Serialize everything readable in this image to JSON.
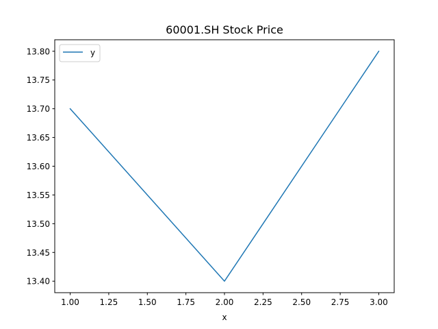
{
  "chart_data": {
    "type": "line",
    "title": "60001.SH Stock Price",
    "xlabel": "x",
    "ylabel": "",
    "x": [
      1,
      2,
      3
    ],
    "series": [
      {
        "name": "y",
        "values": [
          13.7,
          13.4,
          13.8
        ],
        "color": "#1f77b4"
      }
    ],
    "xlim": [
      0.9,
      3.1
    ],
    "ylim": [
      13.38,
      13.82
    ],
    "x_ticks": [
      1.0,
      1.25,
      1.5,
      1.75,
      2.0,
      2.25,
      2.5,
      2.75,
      3.0
    ],
    "x_tick_labels": [
      "1.00",
      "1.25",
      "1.50",
      "1.75",
      "2.00",
      "2.25",
      "2.50",
      "2.75",
      "3.00"
    ],
    "y_ticks": [
      13.4,
      13.45,
      13.5,
      13.55,
      13.6,
      13.65,
      13.7,
      13.75,
      13.8
    ],
    "y_tick_labels": [
      "13.40",
      "13.45",
      "13.50",
      "13.55",
      "13.60",
      "13.65",
      "13.70",
      "13.75",
      "13.80"
    ],
    "grid": false,
    "legend": "upper-left"
  }
}
